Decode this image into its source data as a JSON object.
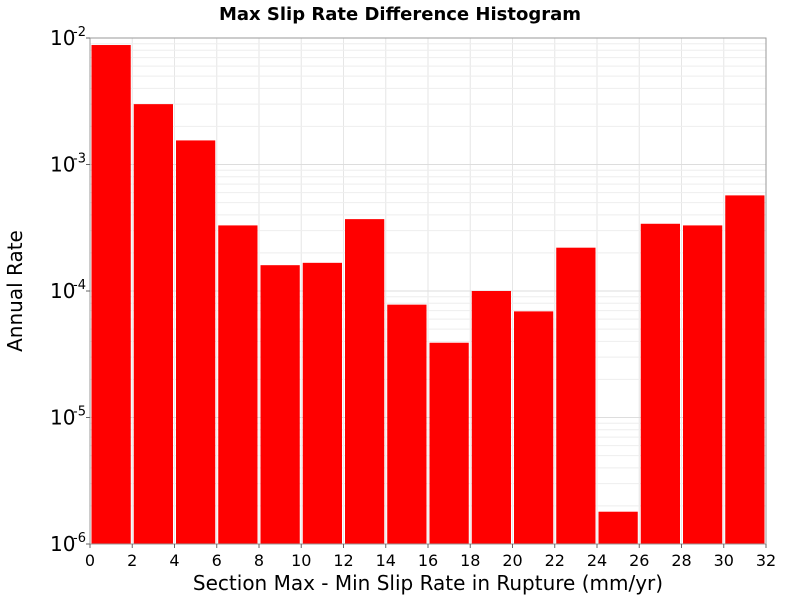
{
  "chart_data": {
    "type": "bar",
    "title": "Max Slip Rate Difference Histogram",
    "xlabel": "Section Max - Min Slip Rate in Rupture (mm/yr)",
    "ylabel": "Annual Rate",
    "xlim": [
      0,
      32
    ],
    "ylim": [
      1e-06,
      0.01
    ],
    "yscale": "log",
    "bin_width": 2,
    "x_ticks": [
      0,
      2,
      4,
      6,
      8,
      10,
      12,
      14,
      16,
      18,
      20,
      22,
      24,
      26,
      28,
      30,
      32
    ],
    "x_tick_labels": [
      "0",
      "2",
      "4",
      "6",
      "8",
      "10",
      "12",
      "14",
      "16",
      "18",
      "20",
      "22",
      "24",
      "26",
      "28",
      "30",
      "32"
    ],
    "y_ticks": [
      {
        "value": 1e-06,
        "base": "10",
        "exp": "-6"
      },
      {
        "value": 1e-05,
        "base": "10",
        "exp": "-5"
      },
      {
        "value": 0.0001,
        "base": "10",
        "exp": "-4"
      },
      {
        "value": 0.001,
        "base": "10",
        "exp": "-3"
      },
      {
        "value": 0.01,
        "base": "10",
        "exp": "-2"
      }
    ],
    "bins": [
      0,
      2,
      4,
      6,
      8,
      10,
      12,
      14,
      16,
      18,
      20,
      22,
      24,
      26,
      28,
      30
    ],
    "values": [
      0.0088,
      0.003,
      0.00155,
      0.00033,
      0.00016,
      0.000167,
      0.00037,
      7.8e-05,
      3.9e-05,
      0.0001,
      6.9e-05,
      0.00022,
      1.8e-06,
      0.00034,
      0.00033,
      0.00057
    ],
    "bar_color": "#ff0000",
    "grid": true
  }
}
